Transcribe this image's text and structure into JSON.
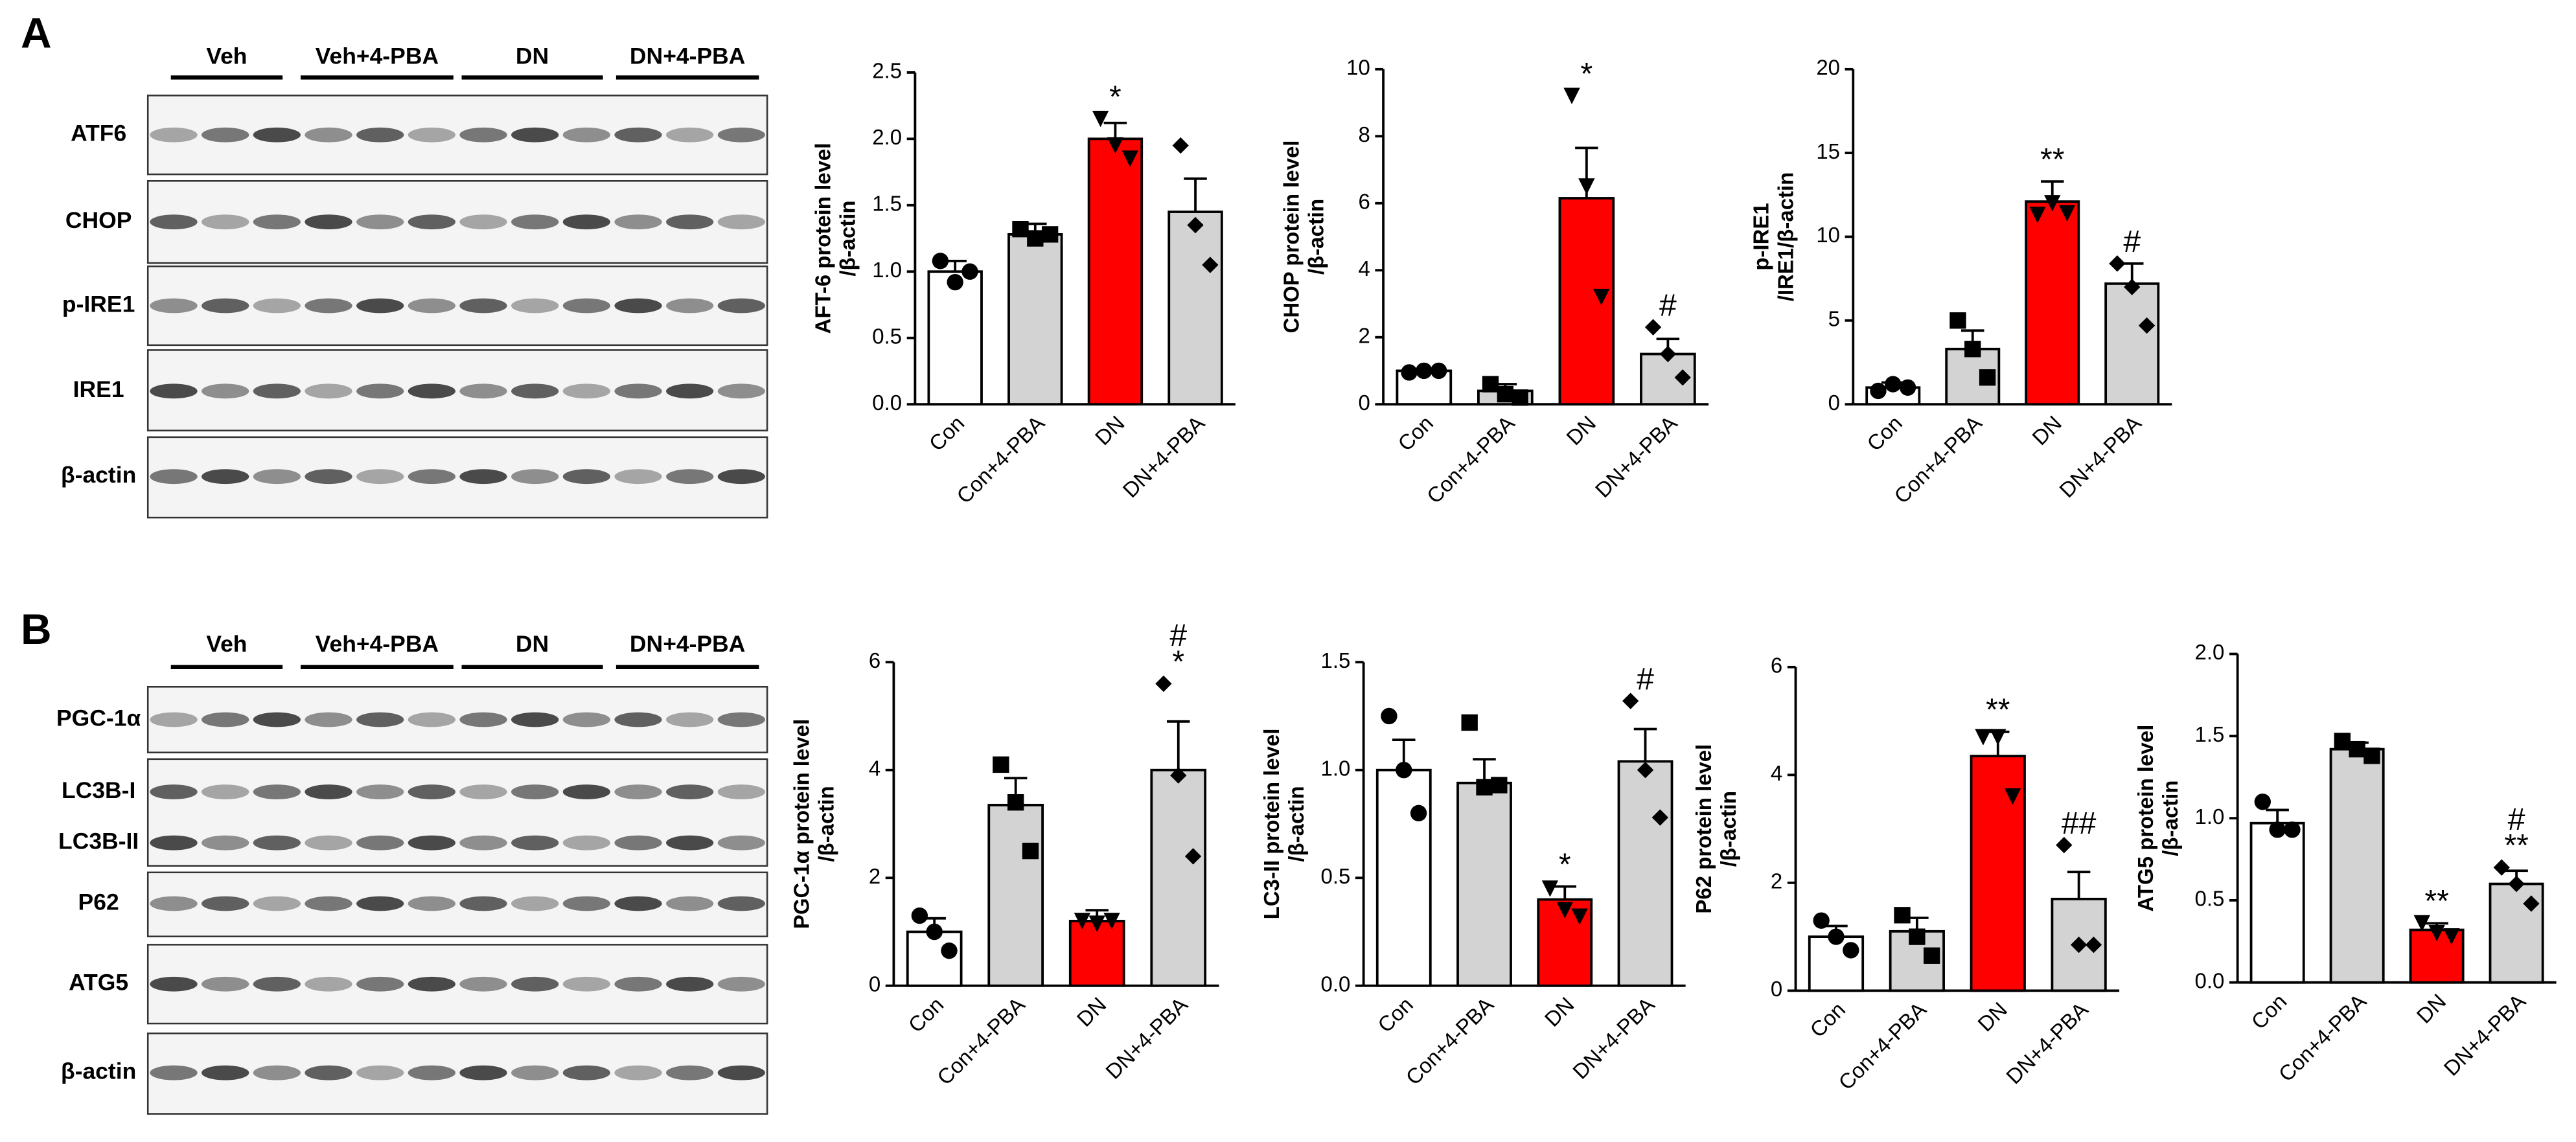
{
  "blots": [
    {
      "label": "A",
      "groups": [
        "Veh",
        "Veh+4-PBA",
        "DN",
        "DN+4-PBA"
      ],
      "rows": [
        [
          "ATF6"
        ],
        [
          "CHOP"
        ],
        [
          "p-IRE1"
        ],
        [
          "IRE1"
        ],
        [
          "β-actin"
        ]
      ]
    },
    {
      "label": "B",
      "groups": [
        "Veh",
        "Veh+4-PBA",
        "DN",
        "DN+4-PBA"
      ],
      "rows": [
        [
          "PGC-1α"
        ],
        [
          "LC3B-I",
          "LC3B-II"
        ],
        [
          "P62"
        ],
        [
          "ATG5"
        ],
        [
          "β-actin"
        ]
      ]
    }
  ],
  "chart_data": [
    {
      "type": "bar",
      "ylabel": [
        "AFT-6 protein level",
        "/β-actin"
      ],
      "categories": [
        "Con",
        "Con+4-PBA",
        "DN",
        "DN+4-PBA"
      ],
      "values": [
        1.0,
        1.28,
        2.0,
        1.45
      ],
      "errors": [
        0.08,
        0.08,
        0.12,
        0.25
      ],
      "points": [
        [
          1.08,
          0.92,
          1.0
        ],
        [
          1.32,
          1.25,
          1.28
        ],
        [
          2.15,
          1.95,
          1.85
        ],
        [
          1.95,
          1.35,
          1.05
        ]
      ],
      "annotations": [
        [],
        [],
        [
          "*"
        ],
        []
      ],
      "colors": [
        "#ffffff",
        "#d3d3d3",
        "#ff0000",
        "#d3d3d3"
      ],
      "markers": [
        "circle",
        "square",
        "triangle",
        "diamond"
      ],
      "ylim": [
        0,
        2.5
      ],
      "yticks": [
        {
          "value": 0,
          "label": "0.0"
        },
        {
          "value": 0.5,
          "label": "0.5"
        },
        {
          "value": 1,
          "label": "1.0"
        },
        {
          "value": 1.5,
          "label": "1.5"
        },
        {
          "value": 2,
          "label": "2.0"
        },
        {
          "value": 2.5,
          "label": "2.5"
        }
      ]
    },
    {
      "type": "bar",
      "ylabel": [
        "CHOP protein level",
        "/β-actin"
      ],
      "categories": [
        "Con",
        "Con+4-PBA",
        "DN",
        "DN+4-PBA"
      ],
      "values": [
        1.0,
        0.4,
        6.15,
        1.5
      ],
      "errors": [
        0.05,
        0.2,
        1.5,
        0.45
      ],
      "points": [
        [
          0.95,
          1.0,
          1.0
        ],
        [
          0.6,
          0.3,
          0.2
        ],
        [
          9.2,
          6.5,
          3.2
        ],
        [
          2.3,
          1.5,
          0.8
        ]
      ],
      "annotations": [
        [],
        [],
        [
          "*"
        ],
        [
          "#"
        ]
      ],
      "colors": [
        "#ffffff",
        "#d3d3d3",
        "#ff0000",
        "#d3d3d3"
      ],
      "markers": [
        "circle",
        "square",
        "triangle",
        "diamond"
      ],
      "ylim": [
        0,
        10
      ],
      "yticks": [
        0,
        2,
        4,
        6,
        8,
        10
      ]
    },
    {
      "type": "bar",
      "ylabel": [
        "p-IRE1",
        "/IRE1/β-actin"
      ],
      "categories": [
        "Con",
        "Con+4-PBA",
        "DN",
        "DN+4-PBA"
      ],
      "values": [
        1.0,
        3.3,
        12.1,
        7.2
      ],
      "errors": [
        0.3,
        1.1,
        1.2,
        1.2
      ],
      "points": [
        [
          0.8,
          1.2,
          1.0
        ],
        [
          5.0,
          3.3,
          1.6
        ],
        [
          11.3,
          12.0,
          11.4
        ],
        [
          8.4,
          7.0,
          4.7
        ]
      ],
      "annotations": [
        [],
        [],
        [
          "**"
        ],
        [
          "#"
        ]
      ],
      "colors": [
        "#ffffff",
        "#d3d3d3",
        "#ff0000",
        "#d3d3d3"
      ],
      "markers": [
        "circle",
        "square",
        "triangle",
        "diamond"
      ],
      "ylim": [
        0,
        20
      ],
      "yticks": [
        0,
        5,
        10,
        15,
        20
      ]
    },
    {
      "type": "bar",
      "ylabel": [
        "PGC-1α protein level",
        "/β-actin"
      ],
      "categories": [
        "Con",
        "Con+4-PBA",
        "DN",
        "DN+4-PBA"
      ],
      "values": [
        1.0,
        3.35,
        1.2,
        4.0
      ],
      "errors": [
        0.25,
        0.5,
        0.2,
        0.9
      ],
      "points": [
        [
          1.3,
          1.0,
          0.65
        ],
        [
          4.1,
          3.4,
          2.5
        ],
        [
          1.2,
          1.15,
          1.2
        ],
        [
          5.6,
          3.9,
          2.4
        ]
      ],
      "annotations": [
        [],
        [],
        [],
        [
          "#",
          "*"
        ]
      ],
      "colors": [
        "#ffffff",
        "#d3d3d3",
        "#ff0000",
        "#d3d3d3"
      ],
      "markers": [
        "circle",
        "square",
        "triangle",
        "diamond"
      ],
      "ylim": [
        0,
        6
      ],
      "yticks": [
        0,
        2,
        4,
        6
      ]
    },
    {
      "type": "bar",
      "ylabel": [
        "LC3-II protein level",
        "/β-actin"
      ],
      "categories": [
        "Con",
        "Con+4-PBA",
        "DN",
        "DN+4-PBA"
      ],
      "values": [
        1.0,
        0.94,
        0.4,
        1.04
      ],
      "errors": [
        0.14,
        0.11,
        0.06,
        0.15
      ],
      "points": [
        [
          1.25,
          1.0,
          0.8
        ],
        [
          1.22,
          0.92,
          0.93
        ],
        [
          0.45,
          0.35,
          0.32
        ],
        [
          1.32,
          1.0,
          0.78
        ]
      ],
      "annotations": [
        [],
        [],
        [
          "*"
        ],
        [
          "#"
        ]
      ],
      "colors": [
        "#ffffff",
        "#d3d3d3",
        "#ff0000",
        "#d3d3d3"
      ],
      "markers": [
        "circle",
        "square",
        "triangle",
        "diamond"
      ],
      "ylim": [
        0,
        1.5
      ],
      "yticks": [
        {
          "value": 0,
          "label": "0.0"
        },
        {
          "value": 0.5,
          "label": "0.5"
        },
        {
          "value": 1,
          "label": "1.0"
        },
        {
          "value": 1.5,
          "label": "1.5"
        }
      ]
    },
    {
      "type": "bar",
      "ylabel": [
        "P62 protein level",
        "/β-actin"
      ],
      "categories": [
        "Con",
        "Con+4-PBA",
        "DN",
        "DN+4-PBA"
      ],
      "values": [
        1.0,
        1.1,
        4.35,
        1.7
      ],
      "errors": [
        0.2,
        0.25,
        0.45,
        0.5
      ],
      "points": [
        [
          1.3,
          1.0,
          0.75
        ],
        [
          1.4,
          1.0,
          0.65
        ],
        [
          4.7,
          4.7,
          3.6
        ],
        [
          2.7,
          0.85,
          0.85
        ]
      ],
      "annotations": [
        [],
        [],
        [
          "**"
        ],
        [
          "##"
        ]
      ],
      "colors": [
        "#ffffff",
        "#d3d3d3",
        "#ff0000",
        "#d3d3d3"
      ],
      "markers": [
        "circle",
        "square",
        "triangle",
        "diamond"
      ],
      "ylim": [
        0,
        6
      ],
      "yticks": [
        0,
        2,
        4,
        6
      ]
    },
    {
      "type": "bar",
      "ylabel": [
        "ATG5 protein level",
        "/β-actin"
      ],
      "categories": [
        "Con",
        "Con+4-PBA",
        "DN",
        "DN+4-PBA"
      ],
      "values": [
        0.97,
        1.42,
        0.32,
        0.6
      ],
      "errors": [
        0.08,
        0.04,
        0.04,
        0.08
      ],
      "points": [
        [
          1.1,
          0.93,
          0.93
        ],
        [
          1.47,
          1.42,
          1.38
        ],
        [
          0.36,
          0.3,
          0.28
        ],
        [
          0.7,
          0.6,
          0.48
        ]
      ],
      "annotations": [
        [],
        [],
        [
          "**"
        ],
        [
          "#",
          "**"
        ]
      ],
      "colors": [
        "#ffffff",
        "#d3d3d3",
        "#ff0000",
        "#d3d3d3"
      ],
      "markers": [
        "circle",
        "square",
        "triangle",
        "diamond"
      ],
      "ylim": [
        0,
        2
      ],
      "yticks": [
        {
          "value": 0,
          "label": "0.0"
        },
        {
          "value": 0.5,
          "label": "0.5"
        },
        {
          "value": 1,
          "label": "1.0"
        },
        {
          "value": 1.5,
          "label": "1.5"
        },
        {
          "value": 2,
          "label": "2.0"
        }
      ]
    }
  ]
}
